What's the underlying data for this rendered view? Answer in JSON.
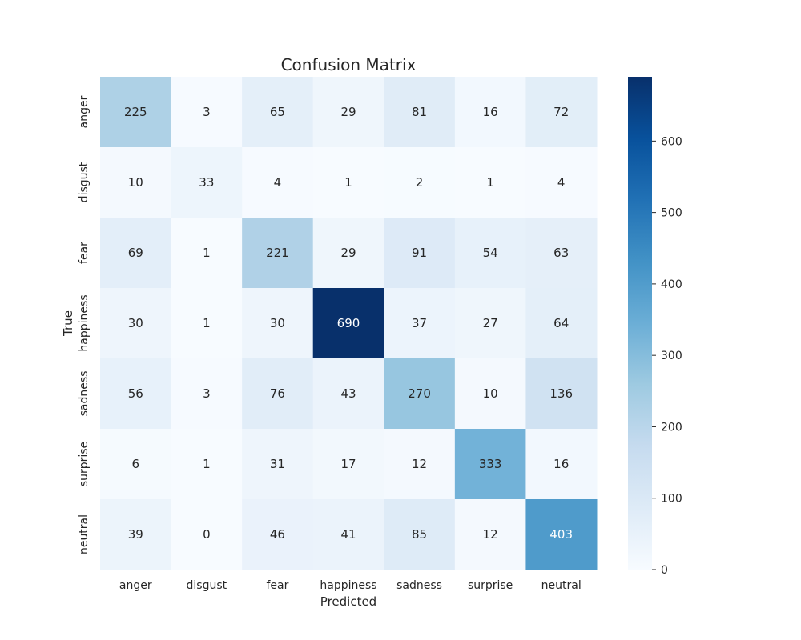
{
  "chart_data": {
    "type": "heatmap",
    "title": "Confusion Matrix",
    "xlabel": "Predicted",
    "ylabel": "True",
    "x_categories": [
      "anger",
      "disgust",
      "fear",
      "happiness",
      "sadness",
      "surprise",
      "neutral"
    ],
    "y_categories": [
      "anger",
      "disgust",
      "fear",
      "happiness",
      "sadness",
      "surprise",
      "neutral"
    ],
    "values": [
      [
        225,
        3,
        65,
        29,
        81,
        16,
        72
      ],
      [
        10,
        33,
        4,
        1,
        2,
        1,
        4
      ],
      [
        69,
        1,
        221,
        29,
        91,
        54,
        63
      ],
      [
        30,
        1,
        30,
        690,
        37,
        27,
        64
      ],
      [
        56,
        3,
        76,
        43,
        270,
        10,
        136
      ],
      [
        6,
        1,
        31,
        17,
        12,
        333,
        16
      ],
      [
        39,
        0,
        46,
        41,
        85,
        12,
        403
      ]
    ],
    "colormap": "Blues",
    "colorbar": {
      "range": [
        0,
        690
      ],
      "ticks": [
        0,
        100,
        200,
        300,
        400,
        500,
        600
      ]
    }
  }
}
